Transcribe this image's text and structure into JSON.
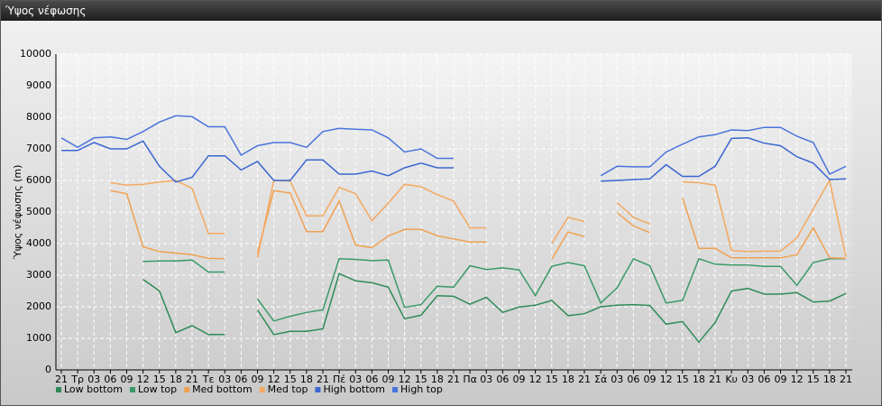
{
  "chart_data": {
    "type": "line",
    "title": "Ύψος νέφωσης",
    "ylabel": "Ύψος νέφωσης (m)",
    "categories": [
      "21",
      "Τρ",
      "03",
      "06",
      "09",
      "12",
      "15",
      "18",
      "21",
      "Τε",
      "03",
      "06",
      "09",
      "12",
      "15",
      "18",
      "21",
      "Πέ",
      "03",
      "06",
      "09",
      "12",
      "15",
      "18",
      "21",
      "Πα",
      "03",
      "06",
      "09",
      "12",
      "15",
      "18",
      "21",
      "Σά",
      "03",
      "06",
      "09",
      "12",
      "15",
      "18",
      "21",
      "Κυ",
      "03",
      "06",
      "09",
      "12",
      "15",
      "18",
      "21"
    ],
    "ylim": [
      0,
      10000
    ],
    "yticks": [
      0,
      1000,
      2000,
      3000,
      4000,
      5000,
      6000,
      7000,
      8000,
      9000,
      10000
    ],
    "grid": true,
    "series": [
      {
        "name": "Low bottom",
        "color": "#2e8b57",
        "values": [
          null,
          null,
          null,
          null,
          null,
          2870,
          2500,
          1180,
          1400,
          1120,
          1120,
          null,
          1900,
          1120,
          1220,
          1220,
          1300,
          3050,
          2820,
          2760,
          2620,
          1620,
          1730,
          2350,
          2330,
          2080,
          2300,
          1820,
          1990,
          2050,
          2200,
          1720,
          1780,
          2000,
          2050,
          2070,
          2040,
          1450,
          1530,
          880,
          1500,
          2500,
          2580,
          2400,
          2400,
          2450,
          2150,
          2180,
          2420
        ]
      },
      {
        "name": "Low top",
        "color": "#3a9a68",
        "values": [
          null,
          null,
          null,
          null,
          null,
          3430,
          3450,
          3450,
          3480,
          3100,
          3100,
          null,
          2250,
          1550,
          1700,
          1820,
          1900,
          3520,
          3500,
          3460,
          3480,
          1980,
          2070,
          2650,
          2620,
          3300,
          3180,
          3230,
          3170,
          2350,
          3280,
          3400,
          3300,
          2120,
          2600,
          3520,
          3300,
          2120,
          2200,
          3520,
          3350,
          3320,
          3320,
          3280,
          3280,
          2680,
          3400,
          3520,
          3520
        ]
      },
      {
        "name": "Med bottom",
        "color": "#f0a050",
        "values": [
          null,
          null,
          null,
          5680,
          5580,
          3900,
          3750,
          3700,
          3650,
          3530,
          3520,
          null,
          3700,
          5680,
          5600,
          4380,
          4380,
          5350,
          3950,
          3870,
          4240,
          4450,
          4450,
          4250,
          4150,
          4050,
          4050,
          null,
          null,
          null,
          3500,
          4370,
          4220,
          null,
          4980,
          4560,
          4350,
          null,
          5450,
          3850,
          3850,
          3550,
          3550,
          3550,
          3550,
          3650,
          4500,
          3550,
          3530
        ]
      },
      {
        "name": "Med top",
        "color": "#f4a860",
        "values": [
          null,
          null,
          null,
          5930,
          5850,
          5880,
          5950,
          6000,
          5750,
          4320,
          4320,
          null,
          3550,
          6000,
          5980,
          4880,
          4880,
          5780,
          5580,
          4730,
          5280,
          5880,
          5800,
          5550,
          5350,
          4500,
          4500,
          null,
          null,
          null,
          4000,
          4830,
          4700,
          null,
          5300,
          4830,
          4620,
          null,
          5960,
          5930,
          5850,
          3780,
          3750,
          3760,
          3760,
          4180,
          5100,
          6000,
          3580
        ]
      },
      {
        "name": "High bottom",
        "color": "#3a66d0",
        "values": [
          6950,
          6950,
          7200,
          7000,
          7000,
          7250,
          6450,
          5950,
          6100,
          6780,
          6780,
          6330,
          6600,
          6000,
          6000,
          6650,
          6650,
          6200,
          6200,
          6300,
          6150,
          6400,
          6550,
          6400,
          6400,
          null,
          null,
          null,
          null,
          null,
          null,
          null,
          null,
          5980,
          6000,
          6030,
          6050,
          6500,
          6130,
          6130,
          6450,
          7330,
          7350,
          7180,
          7100,
          6750,
          6550,
          6030,
          6050
        ]
      },
      {
        "name": "High top",
        "color": "#4a74dc",
        "values": [
          7350,
          7050,
          7350,
          7380,
          7300,
          7550,
          7850,
          8050,
          8020,
          7700,
          7700,
          6800,
          7100,
          7200,
          7200,
          7050,
          7550,
          7650,
          7620,
          7600,
          7350,
          6900,
          7000,
          6700,
          6700,
          null,
          null,
          null,
          null,
          null,
          null,
          null,
          null,
          6150,
          6450,
          6430,
          6430,
          6900,
          7150,
          7380,
          7450,
          7600,
          7580,
          7680,
          7680,
          7400,
          7200,
          6200,
          6450
        ]
      }
    ]
  }
}
